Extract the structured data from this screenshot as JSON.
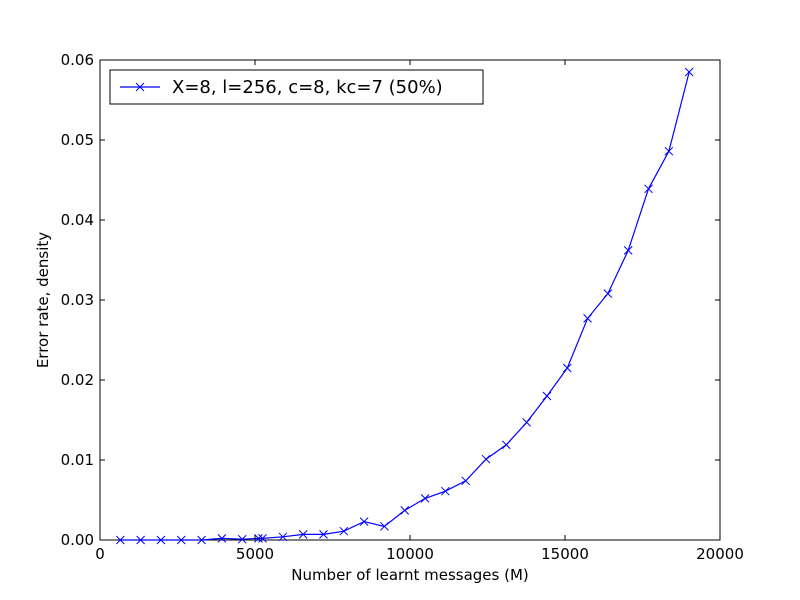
{
  "chart_data": {
    "type": "line",
    "xlabel": "Number of learnt messages (M)",
    "ylabel": "Error rate, density",
    "xlim": [
      0,
      20000
    ],
    "ylim": [
      0,
      0.06
    ],
    "xticks": [
      0,
      5000,
      10000,
      15000,
      20000
    ],
    "xtick_labels": [
      "0",
      "5000",
      "10000",
      "15000",
      "20000"
    ],
    "yticks": [
      0,
      0.01,
      0.02,
      0.03,
      0.04,
      0.05,
      0.06
    ],
    "ytick_labels": [
      "0.00",
      "0.01",
      "0.02",
      "0.03",
      "0.04",
      "0.05",
      "0.06"
    ],
    "grid": false,
    "legend": {
      "position": "top-left"
    },
    "series": [
      {
        "name": "X=8, l=256, c=8, kc=7 (50%)",
        "color": "#0000ff",
        "marker": "x",
        "x": [
          655,
          1311,
          1966,
          2621,
          3277,
          3932,
          4588,
          5112,
          5243,
          5898,
          6554,
          7209,
          7864,
          8520,
          9175,
          9830,
          10486,
          11141,
          11796,
          12452,
          13107,
          13763,
          14418,
          15073,
          15729,
          16384,
          17039,
          17695,
          18350,
          19005
        ],
        "y": [
          0.0,
          0.0,
          0.0,
          0.0,
          0.0,
          0.0002,
          0.0001,
          0.0002,
          0.0002,
          0.0004,
          0.0007,
          0.0007,
          0.0011,
          0.0023,
          0.0017,
          0.0037,
          0.0052,
          0.0061,
          0.0074,
          0.0101,
          0.0119,
          0.0147,
          0.018,
          0.0215,
          0.0277,
          0.0308,
          0.0362,
          0.0439,
          0.0486,
          0.0585
        ]
      }
    ]
  }
}
